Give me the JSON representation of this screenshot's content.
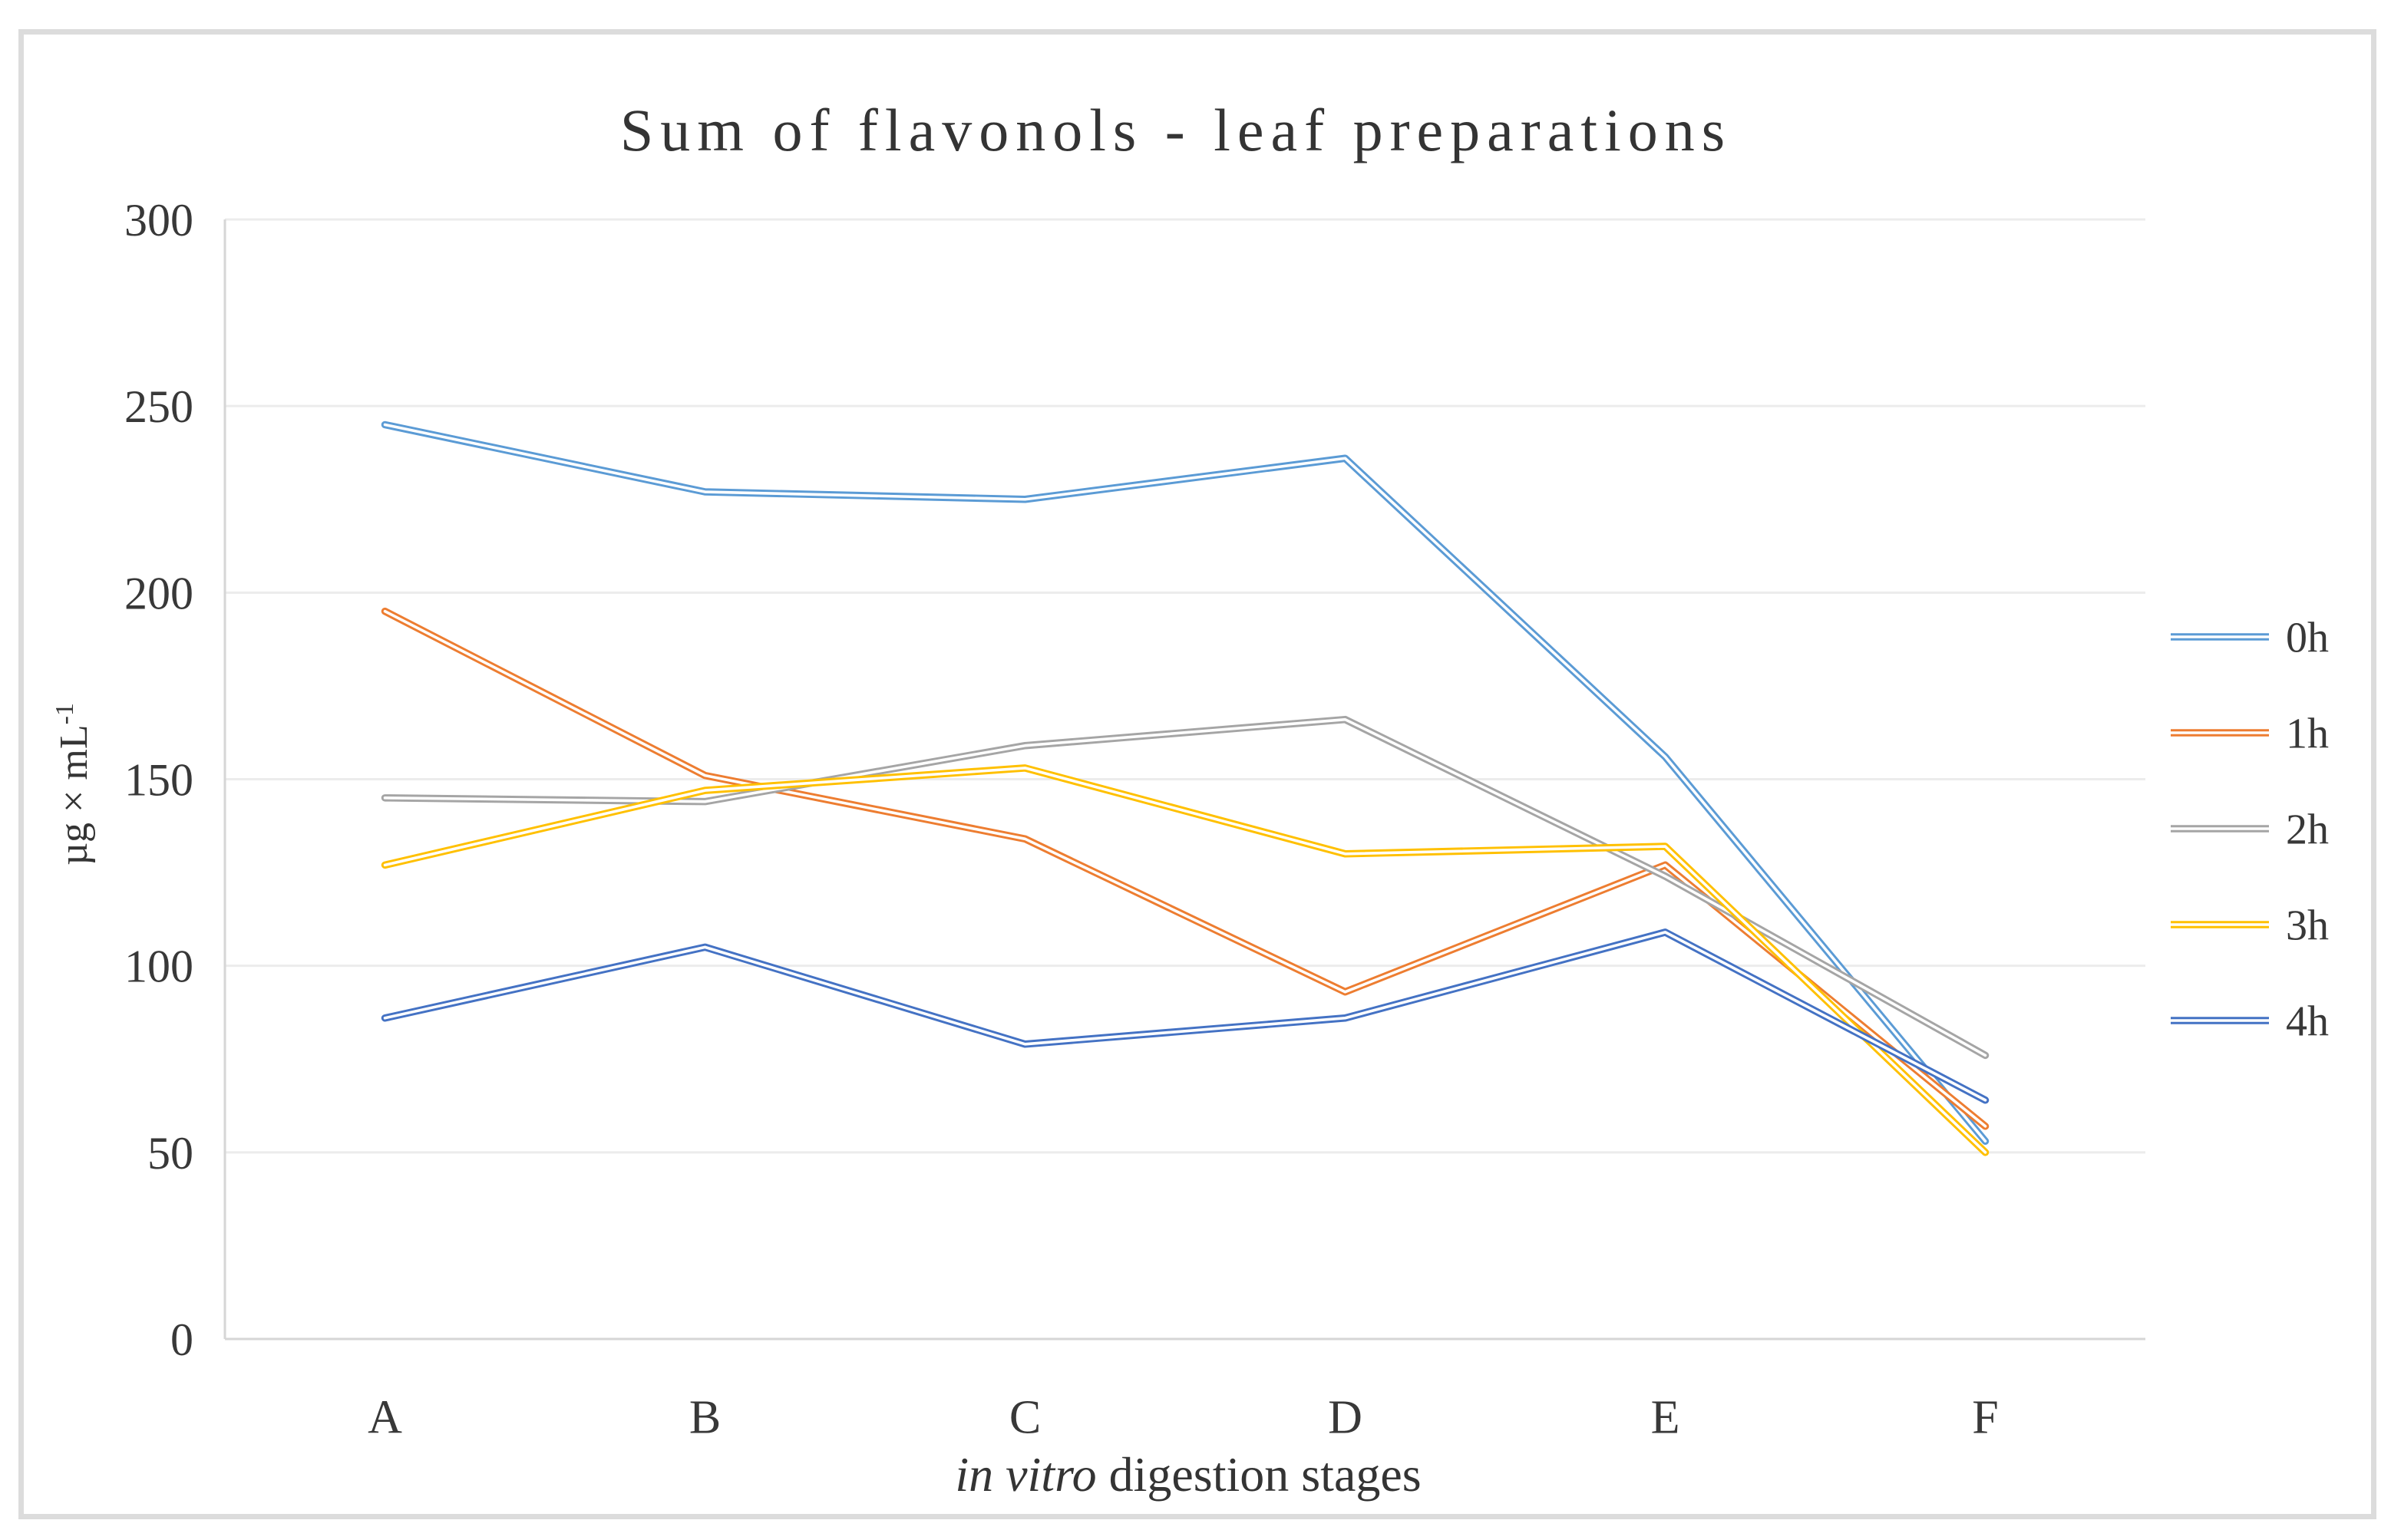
{
  "chart_data": {
    "type": "line",
    "title": "Sum of flavonols - leaf preparations",
    "xlabel": "in vitro digestion stages",
    "ylabel": "µg × mL⁻¹",
    "categories": [
      "A",
      "B",
      "C",
      "D",
      "E",
      "F"
    ],
    "series": [
      {
        "name": "0h",
        "color": "#5B9BD5",
        "values": [
          245,
          227,
          225,
          236,
          156,
          53
        ]
      },
      {
        "name": "1h",
        "color": "#ED7D31",
        "values": [
          195,
          151,
          134,
          93,
          127,
          57
        ]
      },
      {
        "name": "2h",
        "color": "#A5A5A5",
        "values": [
          145,
          144,
          159,
          166,
          124,
          76
        ]
      },
      {
        "name": "3h",
        "color": "#FFC000",
        "values": [
          127,
          147,
          153,
          130,
          132,
          50
        ]
      },
      {
        "name": "4h",
        "color": "#4472C4",
        "values": [
          86,
          105,
          79,
          86,
          109,
          64
        ]
      }
    ],
    "ylim": [
      0,
      300
    ],
    "ytick_step": 50,
    "yticks": [
      0,
      50,
      100,
      150,
      200,
      250,
      300
    ],
    "grid": true,
    "legend_position": "right",
    "legend_entries": [
      "0h",
      "1h",
      "2h",
      "3h",
      "4h"
    ],
    "line_style": "double-compound"
  },
  "labels": {
    "ylabel_base": "µg × mL",
    "ylabel_sup": "-1",
    "xlabel_italic": "in vitro",
    "xlabel_rest": " digestion stages"
  },
  "colors": {
    "text": "#383838",
    "gridline": "#ececec",
    "axis": "#d6d6d6",
    "frame": "#dcdcdc",
    "background": "#ffffff"
  }
}
